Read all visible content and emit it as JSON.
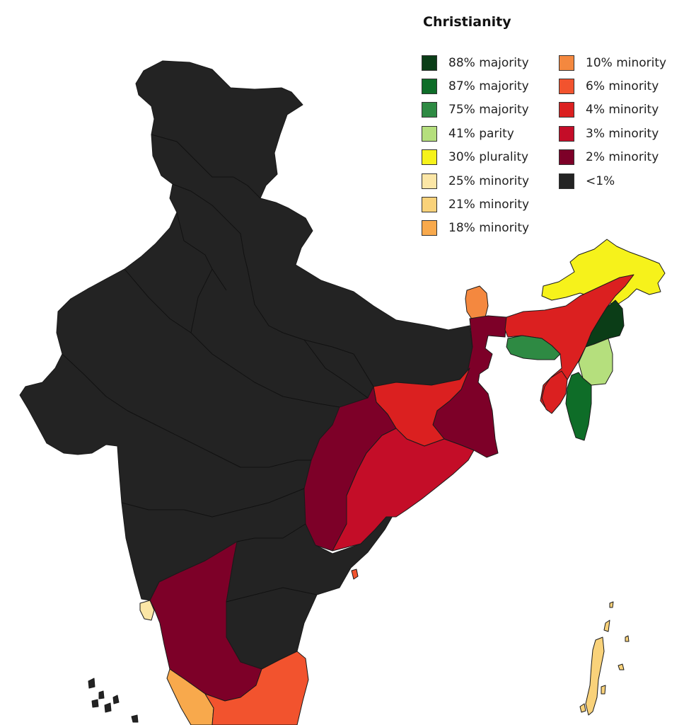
{
  "legend": {
    "title": "Christianity",
    "column_1": [
      {
        "label": "88% majority",
        "color": "#0b3d17"
      },
      {
        "label": "87% majority",
        "color": "#0e6d28"
      },
      {
        "label": "75% majority",
        "color": "#2e8a43"
      },
      {
        "label": "41% parity",
        "color": "#b5df7d"
      },
      {
        "label": "30% plurality",
        "color": "#f6f21b"
      },
      {
        "label": "25% minority",
        "color": "#fbe6a6"
      },
      {
        "label": "21% minority",
        "color": "#f9d27a"
      },
      {
        "label": "18% minority",
        "color": "#f8a94c"
      }
    ],
    "column_2": [
      {
        "label": "10% minority",
        "color": "#f4883f"
      },
      {
        "label": "6% minority",
        "color": "#f2532e"
      },
      {
        "label": "4% minority",
        "color": "#db2020"
      },
      {
        "label": "3% minority",
        "color": "#c40d28"
      },
      {
        "label": "2% minority",
        "color": "#7d0028"
      },
      {
        "label": "<1%",
        "color": "#232323"
      }
    ]
  },
  "map_colors": {
    "base": "#232323",
    "ne_arunachal": "#f6f21b",
    "ne_assam": "#db2020",
    "ne_nagaland": "#0b3d17",
    "ne_manipur": "#b5df7d",
    "ne_mizoram": "#0e6d28",
    "ne_meghalaya": "#2e8a43",
    "ne_tripura": "#db2020",
    "sikkim": "#f4883f",
    "west_bengal": "#7d0028",
    "jharkhand": "#db2020",
    "odisha": "#c40d28",
    "chhattisgarh": "#7d0028",
    "karnataka": "#7d0028",
    "tamil_nadu": "#f2532e",
    "kerala": "#f8a94c",
    "goa": "#fbe6a6",
    "puducherry": "#f2532e",
    "andaman": "#f9d27a",
    "lakshadweep": "#232323"
  }
}
